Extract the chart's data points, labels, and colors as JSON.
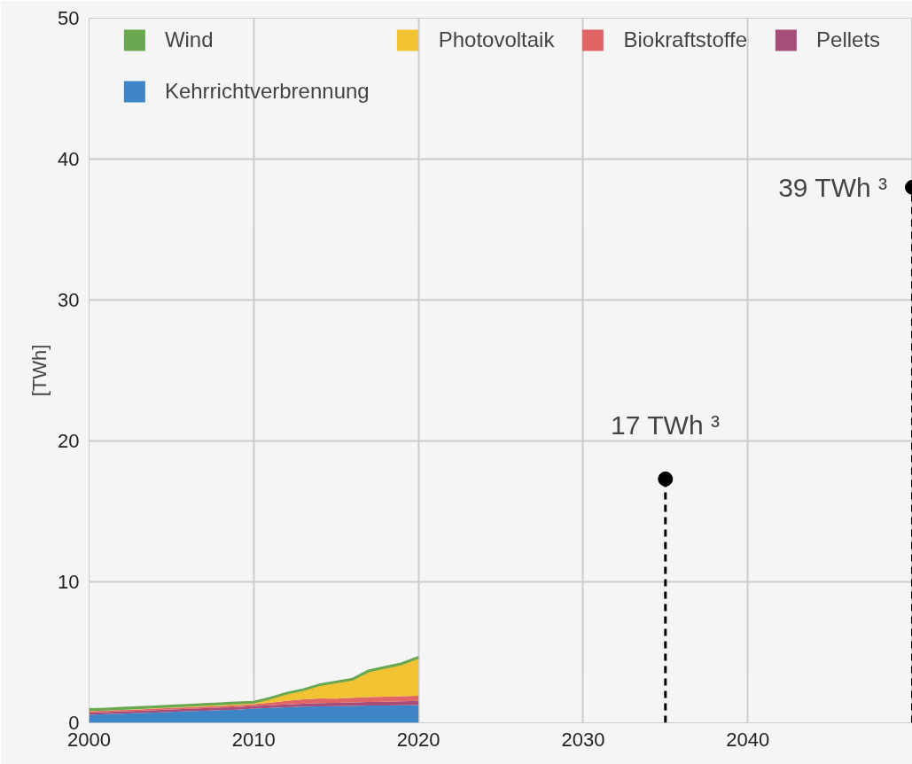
{
  "chart_data": {
    "type": "area",
    "stacked": true,
    "ylabel": "[TWh]",
    "x": [
      2000,
      2001,
      2002,
      2003,
      2004,
      2005,
      2006,
      2007,
      2008,
      2009,
      2010,
      2011,
      2012,
      2013,
      2014,
      2015,
      2016,
      2017,
      2018,
      2019,
      2020
    ],
    "series": [
      {
        "name": "Kehrrichtverbrennung",
        "color": "#3d85c6",
        "values": [
          0.57,
          0.61,
          0.65,
          0.69,
          0.73,
          0.77,
          0.81,
          0.85,
          0.89,
          0.93,
          1.0,
          1.05,
          1.1,
          1.14,
          1.17,
          1.18,
          1.2,
          1.22,
          1.23,
          1.25,
          1.26
        ]
      },
      {
        "name": "Pellets",
        "color": "#a64d79",
        "values": [
          0.15,
          0.15,
          0.16,
          0.16,
          0.17,
          0.17,
          0.18,
          0.18,
          0.19,
          0.19,
          0.19,
          0.2,
          0.21,
          0.22,
          0.23,
          0.24,
          0.25,
          0.26,
          0.27,
          0.28,
          0.3
        ]
      },
      {
        "name": "Biokraftstoffe",
        "color": "#e06666",
        "values": [
          0.1,
          0.1,
          0.1,
          0.1,
          0.11,
          0.11,
          0.11,
          0.12,
          0.12,
          0.13,
          0.13,
          0.18,
          0.25,
          0.3,
          0.33,
          0.3,
          0.32,
          0.34,
          0.35,
          0.35,
          0.36
        ]
      },
      {
        "name": "Photovoltaik",
        "color": "#f1c232",
        "values": [
          0.02,
          0.02,
          0.02,
          0.03,
          0.03,
          0.04,
          0.05,
          0.06,
          0.06,
          0.07,
          0.08,
          0.25,
          0.46,
          0.61,
          0.89,
          1.09,
          1.24,
          1.78,
          2.0,
          2.22,
          2.63
        ]
      },
      {
        "name": "Wind",
        "color": "#6aa84f",
        "values": [
          0.1,
          0.1,
          0.1,
          0.1,
          0.1,
          0.1,
          0.1,
          0.1,
          0.1,
          0.1,
          0.07,
          0.07,
          0.08,
          0.08,
          0.08,
          0.09,
          0.09,
          0.1,
          0.1,
          0.1,
          0.1
        ]
      },
      {
        "type": "lollipop",
        "color": "#000000",
        "x": [
          2035,
          2050
        ],
        "values": [
          17.3,
          38
        ],
        "line_style": "dashed",
        "marker": "circle"
      }
    ],
    "annotations": [
      {
        "text": "17 TWh ³",
        "x": 2035,
        "y": 17.3
      },
      {
        "text": "39 TWh ³",
        "x": 2050,
        "y": 38
      }
    ],
    "xlim": [
      2000,
      2050
    ],
    "xticks": [
      2000,
      2010,
      2020,
      2030,
      2040
    ],
    "ylim": [
      0,
      50
    ],
    "yticks": [
      0,
      10,
      20,
      30,
      40,
      50
    ],
    "grid": true,
    "legend": "top"
  }
}
